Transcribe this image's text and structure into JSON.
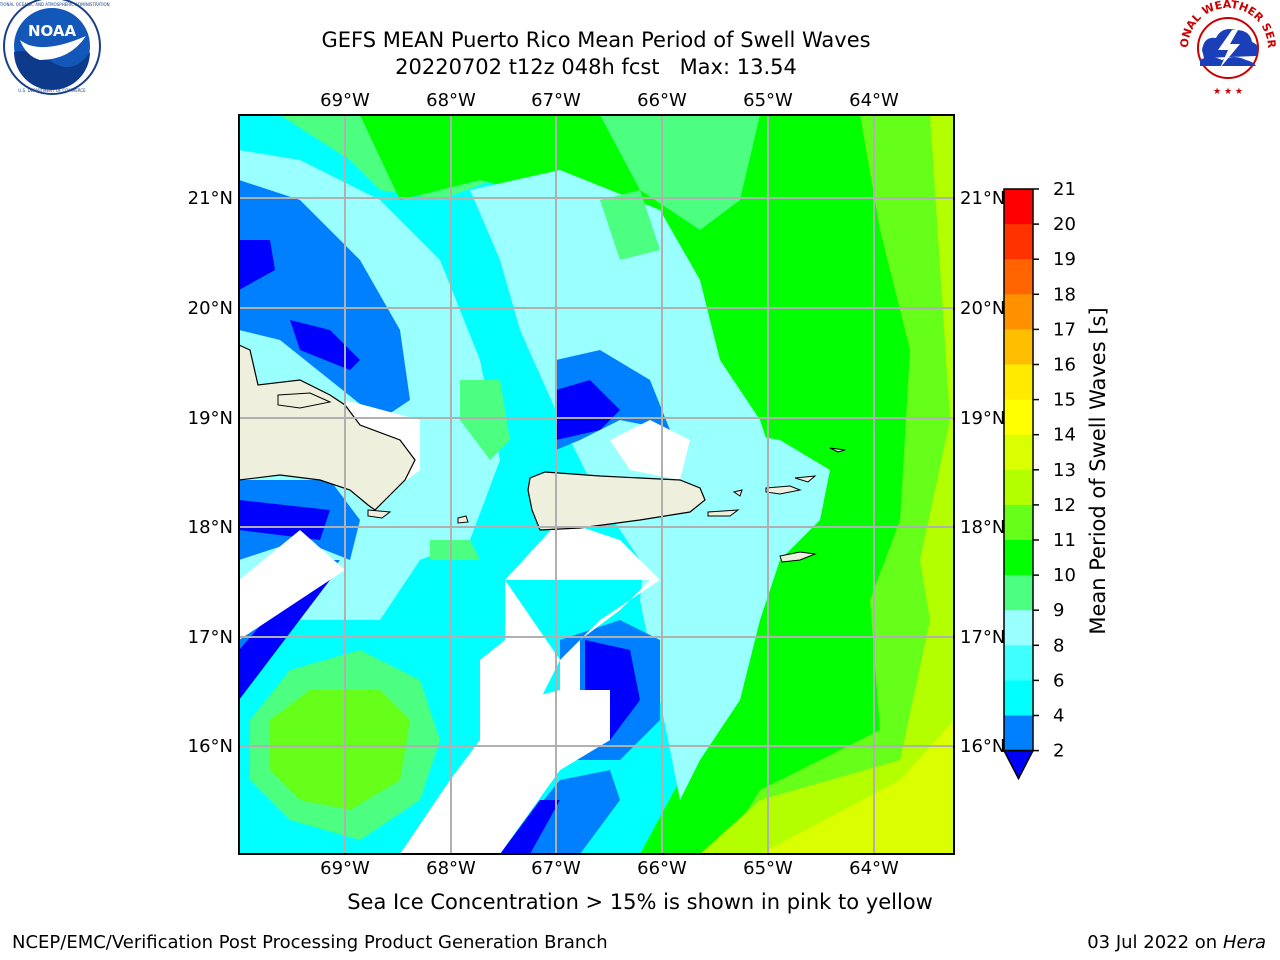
{
  "header": {
    "title_line1": "GEFS MEAN Puerto Rico Mean Period of Swell Waves",
    "title_line2": "20220702 t12z 048h fcst   Max: 13.54"
  },
  "logos": {
    "left": {
      "icon": "noaa-logo-icon",
      "text": "NOAA",
      "ring_text": "NATIONAL OCEANIC AND ATMOSPHERIC ADMINISTRATION · U.S. DEPARTMENT OF COMMERCE"
    },
    "right": {
      "icon": "nws-logo-icon",
      "ring_text": "NATIONAL WEATHER SERVICE"
    }
  },
  "map": {
    "lon_labels": [
      "69°W",
      "68°W",
      "67°W",
      "66°W",
      "65°W",
      "64°W"
    ],
    "lat_labels": [
      "21°N",
      "20°N",
      "19°N",
      "18°N",
      "17°N",
      "16°N"
    ],
    "extent": {
      "lon": [
        -69.0,
        -63.3
      ],
      "lat": [
        15.0,
        21.75
      ]
    }
  },
  "colorbar": {
    "label": "Mean Period of Swell Waves [s]",
    "ticks": [
      "2",
      "4",
      "6",
      "8",
      "9",
      "10",
      "11",
      "12",
      "13",
      "14",
      "15",
      "16",
      "17",
      "18",
      "19",
      "20",
      "21"
    ],
    "colors": [
      "#0000ff",
      "#0080ff",
      "#00ffff",
      "#40ffff",
      "#99ffff",
      "#4dff80",
      "#00ff00",
      "#66ff19",
      "#b3ff00",
      "#d9ff00",
      "#ffff00",
      "#ffea00",
      "#ffbf00",
      "#ff9100",
      "#ff6400",
      "#ff3200",
      "#ff0000"
    ]
  },
  "note": "Sea Ice Concentration > 15% is shown in pink to yellow",
  "footer": {
    "left": "NCEP/EMC/Verification Post Processing Product Generation Branch",
    "right_prefix": "03 Jul 2022 on ",
    "right_host": "Hera"
  }
}
